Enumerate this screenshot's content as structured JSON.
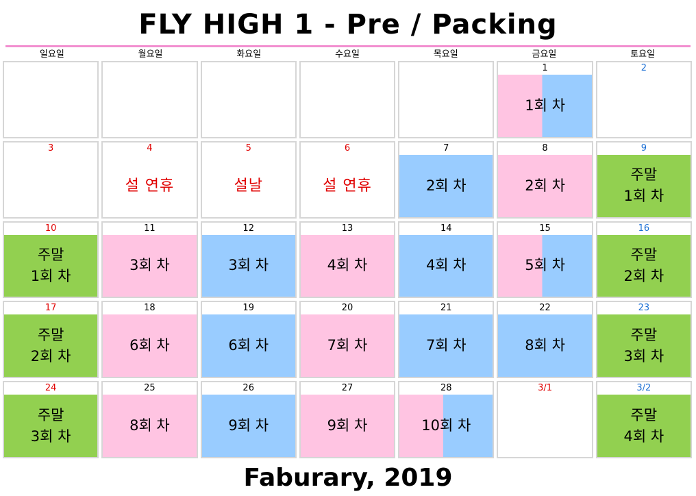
{
  "title": "FLY HIGH 1 - Pre / Packing",
  "footer": "Faburary, 2019",
  "weekdays": [
    "일요일",
    "월요일",
    "화요일",
    "수요일",
    "목요일",
    "금요일",
    "토요일"
  ],
  "colors": {
    "pink": "#ffc4e2",
    "blue": "#99ccff",
    "green": "#92d050",
    "holiday_red": "#e00000",
    "weekend_blue": "#1b6fd4",
    "rule": "#f28fd0"
  },
  "weeks": [
    [
      {
        "date": "",
        "label": "",
        "fill": "none"
      },
      {
        "date": "",
        "label": "",
        "fill": "none"
      },
      {
        "date": "",
        "label": "",
        "fill": "none"
      },
      {
        "date": "",
        "label": "",
        "fill": "none"
      },
      {
        "date": "",
        "label": "",
        "fill": "none"
      },
      {
        "date": "1",
        "label": "1회 차",
        "fill": "split"
      },
      {
        "date": "2",
        "label": "",
        "fill": "none",
        "date_color": "blue"
      }
    ],
    [
      {
        "date": "3",
        "label": "",
        "fill": "none",
        "date_color": "red"
      },
      {
        "date": "4",
        "label": "설 연휴",
        "fill": "holiday",
        "date_color": "red"
      },
      {
        "date": "5",
        "label": "설날",
        "fill": "holiday",
        "date_color": "red"
      },
      {
        "date": "6",
        "label": "설 연휴",
        "fill": "holiday",
        "date_color": "red"
      },
      {
        "date": "7",
        "label": "2회 차",
        "fill": "blue"
      },
      {
        "date": "8",
        "label": "2회 차",
        "fill": "pink"
      },
      {
        "date": "9",
        "label": "주말\n1회 차",
        "fill": "green",
        "date_color": "blue"
      }
    ],
    [
      {
        "date": "10",
        "label": "주말\n1회 차",
        "fill": "green",
        "date_color": "red"
      },
      {
        "date": "11",
        "label": "3회 차",
        "fill": "pink"
      },
      {
        "date": "12",
        "label": "3회 차",
        "fill": "blue"
      },
      {
        "date": "13",
        "label": "4회 차",
        "fill": "pink"
      },
      {
        "date": "14",
        "label": "4회 차",
        "fill": "blue"
      },
      {
        "date": "15",
        "label": "5회 차",
        "fill": "split"
      },
      {
        "date": "16",
        "label": "주말\n2회 차",
        "fill": "green",
        "date_color": "blue"
      }
    ],
    [
      {
        "date": "17",
        "label": "주말\n2회 차",
        "fill": "green",
        "date_color": "red"
      },
      {
        "date": "18",
        "label": "6회 차",
        "fill": "pink"
      },
      {
        "date": "19",
        "label": "6회 차",
        "fill": "blue"
      },
      {
        "date": "20",
        "label": "7회 차",
        "fill": "pink"
      },
      {
        "date": "21",
        "label": "7회 차",
        "fill": "blue"
      },
      {
        "date": "22",
        "label": "8회 차",
        "fill": "blue"
      },
      {
        "date": "23",
        "label": "주말\n3회 차",
        "fill": "green",
        "date_color": "blue"
      }
    ],
    [
      {
        "date": "24",
        "label": "주말\n3회 차",
        "fill": "green",
        "date_color": "red"
      },
      {
        "date": "25",
        "label": "8회 차",
        "fill": "pink"
      },
      {
        "date": "26",
        "label": "9회 차",
        "fill": "blue"
      },
      {
        "date": "27",
        "label": "9회 차",
        "fill": "pink"
      },
      {
        "date": "28",
        "label": "10회 차",
        "fill": "split"
      },
      {
        "date": "3/1",
        "label": "",
        "fill": "none",
        "date_color": "red"
      },
      {
        "date": "3/2",
        "label": "주말\n4회 차",
        "fill": "green",
        "date_color": "blue"
      }
    ]
  ]
}
